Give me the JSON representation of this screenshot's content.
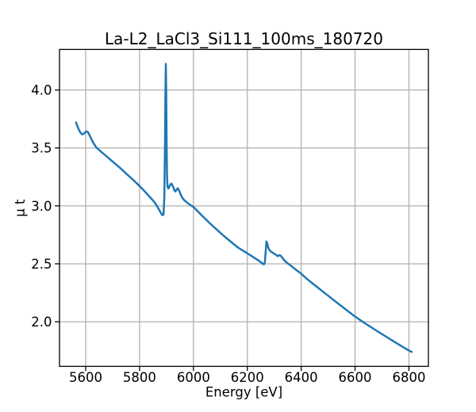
{
  "chart_data": {
    "type": "line",
    "title": "La-L2_LaCl3_Si111_100ms_180720",
    "xlabel": "Energy [eV]",
    "ylabel": "μ t",
    "xlim": [
      5502.75,
      6872.25
    ],
    "ylim": [
      1.615,
      4.35
    ],
    "xticks": [
      5600,
      5800,
      6000,
      6200,
      6400,
      6600,
      6800
    ],
    "yticks": [
      2.0,
      2.5,
      3.0,
      3.5,
      4.0
    ],
    "grid": true,
    "legend": false,
    "line_color": "#1f77b4",
    "grid_color": "#b0b0b0",
    "spine_color": "#000000",
    "series": [
      {
        "name": "mu_t",
        "points": [
          [
            5564,
            3.72
          ],
          [
            5569,
            3.69
          ],
          [
            5574,
            3.66
          ],
          [
            5580,
            3.634
          ],
          [
            5586,
            3.618
          ],
          [
            5591,
            3.62
          ],
          [
            5597,
            3.632
          ],
          [
            5602,
            3.642
          ],
          [
            5607,
            3.64
          ],
          [
            5612,
            3.622
          ],
          [
            5618,
            3.59
          ],
          [
            5625,
            3.558
          ],
          [
            5632,
            3.53
          ],
          [
            5640,
            3.502
          ],
          [
            5650,
            3.482
          ],
          [
            5660,
            3.462
          ],
          [
            5671,
            3.44
          ],
          [
            5682,
            3.418
          ],
          [
            5694,
            3.394
          ],
          [
            5706,
            3.37
          ],
          [
            5719,
            3.345
          ],
          [
            5732,
            3.318
          ],
          [
            5745,
            3.29
          ],
          [
            5758,
            3.262
          ],
          [
            5771,
            3.235
          ],
          [
            5784,
            3.207
          ],
          [
            5797,
            3.178
          ],
          [
            5810,
            3.148
          ],
          [
            5823,
            3.115
          ],
          [
            5836,
            3.082
          ],
          [
            5848,
            3.052
          ],
          [
            5859,
            3.02
          ],
          [
            5868,
            2.985
          ],
          [
            5876,
            2.952
          ],
          [
            5881,
            2.932
          ],
          [
            5885,
            2.92
          ],
          [
            5889,
            2.924
          ],
          [
            5892,
            3.08
          ],
          [
            5894.5,
            3.55
          ],
          [
            5896,
            3.97
          ],
          [
            5897.5,
            4.225
          ],
          [
            5899,
            3.98
          ],
          [
            5900.5,
            3.52
          ],
          [
            5902,
            3.25
          ],
          [
            5904,
            3.163
          ],
          [
            5907,
            3.15
          ],
          [
            5911,
            3.167
          ],
          [
            5915,
            3.188
          ],
          [
            5919,
            3.192
          ],
          [
            5924,
            3.168
          ],
          [
            5929,
            3.135
          ],
          [
            5933,
            3.124
          ],
          [
            5938,
            3.143
          ],
          [
            5942,
            3.152
          ],
          [
            5947,
            3.131
          ],
          [
            5952,
            3.101
          ],
          [
            5958,
            3.072
          ],
          [
            5965,
            3.051
          ],
          [
            5973,
            3.035
          ],
          [
            5981,
            3.02
          ],
          [
            5990,
            3.005
          ],
          [
            6000,
            2.99
          ],
          [
            6015,
            2.955
          ],
          [
            6030,
            2.92
          ],
          [
            6045,
            2.886
          ],
          [
            6060,
            2.852
          ],
          [
            6075,
            2.82
          ],
          [
            6090,
            2.788
          ],
          [
            6105,
            2.757
          ],
          [
            6120,
            2.727
          ],
          [
            6135,
            2.698
          ],
          [
            6150,
            2.669
          ],
          [
            6165,
            2.641
          ],
          [
            6180,
            2.619
          ],
          [
            6195,
            2.598
          ],
          [
            6210,
            2.576
          ],
          [
            6225,
            2.553
          ],
          [
            6240,
            2.531
          ],
          [
            6252,
            2.511
          ],
          [
            6259,
            2.498
          ],
          [
            6262,
            2.496
          ],
          [
            6265,
            2.51
          ],
          [
            6268,
            2.6
          ],
          [
            6271,
            2.693
          ],
          [
            6274,
            2.676
          ],
          [
            6277,
            2.648
          ],
          [
            6281,
            2.622
          ],
          [
            6287,
            2.606
          ],
          [
            6294,
            2.596
          ],
          [
            6301,
            2.586
          ],
          [
            6308,
            2.574
          ],
          [
            6313,
            2.566
          ],
          [
            6318,
            2.575
          ],
          [
            6324,
            2.57
          ],
          [
            6330,
            2.552
          ],
          [
            6337,
            2.531
          ],
          [
            6345,
            2.513
          ],
          [
            6358,
            2.49
          ],
          [
            6370,
            2.468
          ],
          [
            6385,
            2.441
          ],
          [
            6400,
            2.415
          ],
          [
            6420,
            2.372
          ],
          [
            6440,
            2.335
          ],
          [
            6460,
            2.298
          ],
          [
            6480,
            2.261
          ],
          [
            6500,
            2.225
          ],
          [
            6520,
            2.188
          ],
          [
            6540,
            2.152
          ],
          [
            6560,
            2.116
          ],
          [
            6580,
            2.08
          ],
          [
            6600,
            2.045
          ],
          [
            6620,
            2.013
          ],
          [
            6640,
            1.982
          ],
          [
            6660,
            1.952
          ],
          [
            6680,
            1.922
          ],
          [
            6700,
            1.893
          ],
          [
            6720,
            1.864
          ],
          [
            6740,
            1.835
          ],
          [
            6760,
            1.807
          ],
          [
            6780,
            1.779
          ],
          [
            6800,
            1.752
          ],
          [
            6810,
            1.74
          ]
        ]
      }
    ]
  }
}
